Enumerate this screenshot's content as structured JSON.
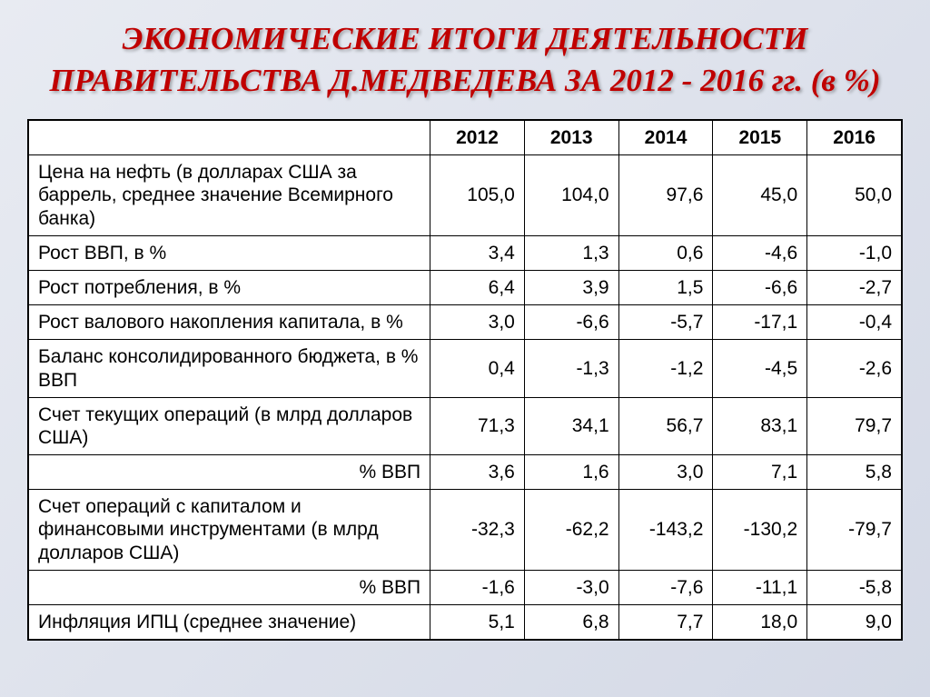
{
  "title": "ЭКОНОМИЧЕСКИЕ ИТОГИ ДЕЯТЕЛЬНОСТИ ПРАВИТЕЛЬСТВА Д.МЕДВЕДЕВА ЗА 2012 - 2016 гг. (в %)",
  "table": {
    "headers": [
      "",
      "2012",
      "2013",
      "2014",
      "2015",
      "2016"
    ],
    "rows": [
      {
        "label": "Цена на нефть (в долларах США за баррель, среднее значение Всемирного банка)",
        "align": "left",
        "values": [
          "105,0",
          "104,0",
          "97,6",
          "45,0",
          "50,0"
        ]
      },
      {
        "label": "Рост ВВП, в %",
        "align": "left",
        "values": [
          "3,4",
          "1,3",
          "0,6",
          "-4,6",
          "-1,0"
        ]
      },
      {
        "label": "Рост потребления, в %",
        "align": "left",
        "values": [
          "6,4",
          "3,9",
          "1,5",
          "-6,6",
          "-2,7"
        ]
      },
      {
        "label": "Рост валового накопления капитала, в %",
        "align": "left",
        "values": [
          "3,0",
          "-6,6",
          "-5,7",
          "-17,1",
          "-0,4"
        ]
      },
      {
        "label": "Баланс консолидированного бюджета, в % ВВП",
        "align": "left",
        "values": [
          "0,4",
          "-1,3",
          "-1,2",
          "-4,5",
          "-2,6"
        ]
      },
      {
        "label": "Счет текущих операций (в млрд долларов США)",
        "align": "left",
        "values": [
          "71,3",
          "34,1",
          "56,7",
          "83,1",
          "79,7"
        ]
      },
      {
        "label": "% ВВП",
        "align": "right",
        "values": [
          "3,6",
          "1,6",
          "3,0",
          "7,1",
          "5,8"
        ]
      },
      {
        "label": "Счет операций с капиталом и финансовыми инструментами (в млрд долларов США)",
        "align": "left",
        "values": [
          "-32,3",
          "-62,2",
          "-143,2",
          "-130,2",
          "-79,7"
        ]
      },
      {
        "label": "% ВВП",
        "align": "right",
        "values": [
          "-1,6",
          "-3,0",
          "-7,6",
          "-11,1",
          "-5,8"
        ]
      },
      {
        "label": "Инфляция ИПЦ (среднее значение)",
        "align": "left",
        "values": [
          "5,1",
          "6,8",
          "7,7",
          "18,0",
          "9,0"
        ]
      }
    ]
  },
  "styling": {
    "title_color": "#c00000",
    "title_fontsize": 35,
    "title_font_family": "Georgia, serif",
    "title_font_style": "italic",
    "title_font_weight": "bold",
    "title_shadow": "2px 2px 3px rgba(0,0,0,0.3)",
    "background_gradient": [
      "#e8ebf2",
      "#d4d9e6"
    ],
    "table_background": "#ffffff",
    "border_color": "#000000",
    "cell_fontsize": 21,
    "cell_font_family": "Arial, sans-serif",
    "label_column_width_pct": 46,
    "value_column_width_pct": 10.8
  }
}
